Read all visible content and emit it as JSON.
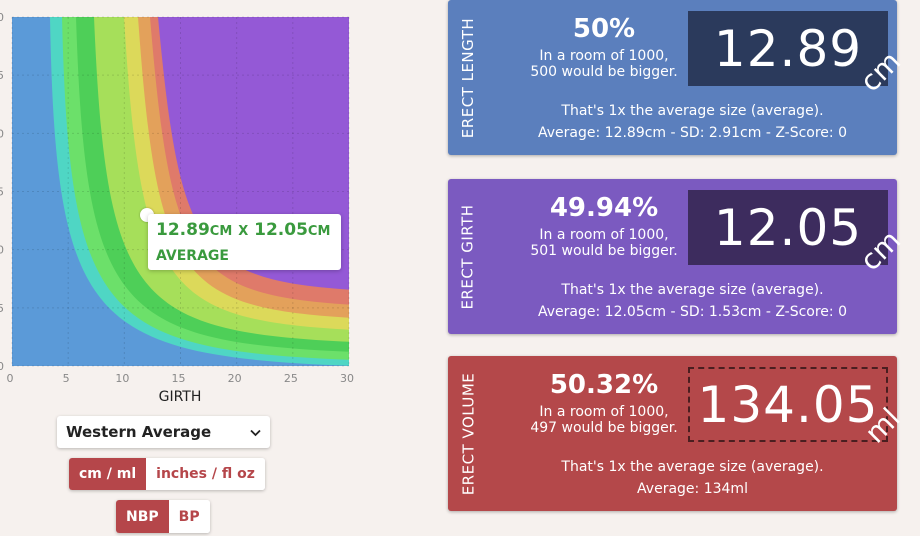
{
  "chart": {
    "y_tick_labels": [
      "0",
      "5",
      "0",
      "5",
      "0",
      "5",
      "0"
    ],
    "x_tick_labels": [
      "0",
      "5",
      "10",
      "15",
      "20",
      "25",
      "30"
    ],
    "x_axis_title": "GIRTH",
    "tooltip": {
      "length_value": "12.89",
      "length_unit": "CM",
      "separator": "X",
      "girth_value": "12.05",
      "girth_unit": "CM",
      "label": "AVERAGE"
    },
    "colors": {
      "blue": "#5b9ad8",
      "teal": "#4fd6c4",
      "green_light": "#6ce06a",
      "green": "#4ecf58",
      "lime": "#a6df5a",
      "yellow": "#dcd95a",
      "orange": "#e3a15b",
      "salmon": "#df7a6a",
      "purple": "#9459d6"
    }
  },
  "chart_data": {
    "type": "heatmap",
    "xlabel": "GIRTH",
    "xlim": [
      0,
      30
    ],
    "x_ticks": [
      0,
      5,
      10,
      15,
      20,
      25,
      30
    ],
    "marker": {
      "girth": 12.05,
      "length": 12.89,
      "label": "AVERAGE"
    },
    "bands": [
      "blue",
      "teal",
      "green_light",
      "green",
      "lime",
      "yellow",
      "orange",
      "salmon",
      "purple"
    ]
  },
  "controls": {
    "preset_select": "Western Average",
    "chevron_icon": "chevron-down-icon",
    "units_options": [
      "cm / ml",
      "inches / fl oz"
    ],
    "units_active": 0,
    "mode_options": [
      "NBP",
      "BP"
    ],
    "mode_active": 0
  },
  "cards": {
    "length": {
      "side_label": "ERECT LENGTH",
      "percent": "50%",
      "room_line1": "In a room of 1000,",
      "room_line2": "500 would be bigger.",
      "value": "12.89",
      "unit": "cm",
      "description": "That's 1x the average size (average).",
      "stats": "Average: 12.89cm - SD: 2.91cm - Z-Score: 0",
      "color": "#5b7fbd"
    },
    "girth": {
      "side_label": "ERECT GIRTH",
      "percent": "49.94%",
      "room_line1": "In a room of 1000,",
      "room_line2": "501 would be bigger.",
      "value": "12.05",
      "unit": "cm",
      "description": "That's 1x the average size (average).",
      "stats": "Average: 12.05cm - SD: 1.53cm - Z-Score: 0",
      "color": "#7b5ac0"
    },
    "volume": {
      "side_label": "ERECT VOLUME",
      "percent": "50.32%",
      "room_line1": "In a room of 1000,",
      "room_line2": "497 would be bigger.",
      "value": "134.05",
      "unit": "ml",
      "description": "That's 1x the average size (average).",
      "stats": "Average: 134ml",
      "color": "#b4484a"
    }
  }
}
